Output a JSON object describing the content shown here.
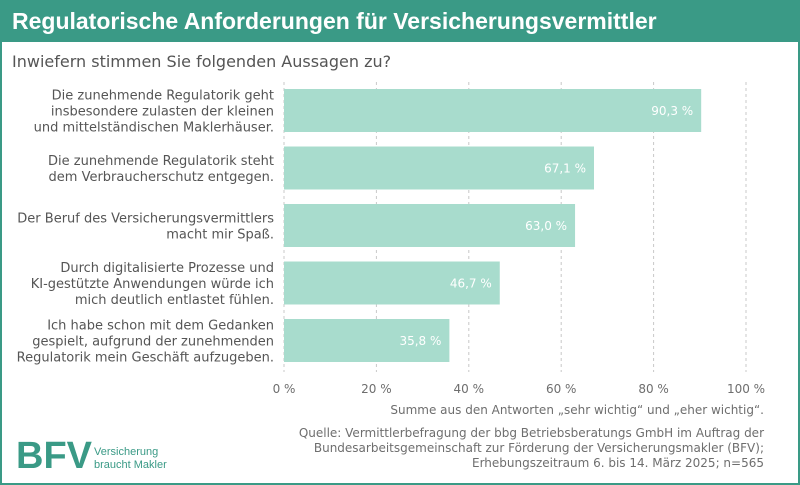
{
  "header": {
    "title": "Regulatorische Anforderungen für Versicherungsvermittler",
    "subtitle": "Inwiefern stimmen Sie folgenden Aussagen zu?"
  },
  "chart_data": {
    "type": "bar",
    "orientation": "horizontal",
    "categories": [
      [
        "Die zunehmende Regulatorik geht",
        "insbesondere zulasten der kleinen",
        "und mittelständischen Maklerhäuser."
      ],
      [
        "Die zunehmende Regulatorik steht",
        "dem Verbraucherschutz entgegen."
      ],
      [
        "Der Beruf des Versicherungsvermittlers",
        "macht mir Spaß."
      ],
      [
        "Durch digitalisierte Prozesse und",
        "KI-gestützte Anwendungen würde ich",
        "mich deutlich entlastet fühlen."
      ],
      [
        "Ich habe schon mit dem Gedanken",
        "gespielt, aufgrund der zunehmenden",
        "Regulatorik mein Geschäft aufzugeben."
      ]
    ],
    "values": [
      90.3,
      67.1,
      63.0,
      46.7,
      35.8
    ],
    "value_labels": [
      "90,3 %",
      "67,1 %",
      "63,0 %",
      "46,7 %",
      "35,8 %"
    ],
    "xlim": [
      0,
      100
    ],
    "ticks": [
      0,
      20,
      40,
      60,
      80,
      100
    ],
    "tick_labels": [
      "0 %",
      "20 %",
      "40 %",
      "60 %",
      "80 %",
      "100 %"
    ],
    "grid": true,
    "bar_color": "#a8dccd",
    "grid_color": "#c8c8c8"
  },
  "footer": {
    "note": "Summe aus den Antworten „sehr wichtig“ und „eher wichtig“.",
    "source_lines": [
      "Quelle: Vermittlerbefragung der bbg Betriebsberatungs GmbH im Auftrag der",
      "Bundesarbeitsgemeinschaft zur Förderung der Versicherungsmakler (BFV);",
      "Erhebungszeitraum 6. bis 14. März 2025; n=565"
    ]
  },
  "logo": {
    "text": "BFV",
    "tagline_1": "Versicherung",
    "tagline_2": "braucht Makler"
  },
  "colors": {
    "accent": "#3a9a86",
    "bar": "#a8dccd",
    "text": "#555555"
  }
}
